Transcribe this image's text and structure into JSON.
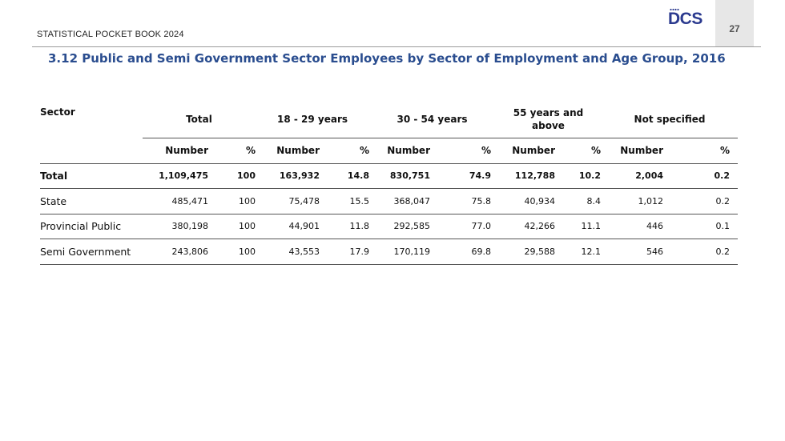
{
  "header": {
    "book_title": "STATISTICAL POCKET BOOK 2024",
    "logo_text": "DCS",
    "page_number": "27"
  },
  "section_title": "3.12 Public and Semi Government Sector Employees by Sector of Employment and Age Group, 2016",
  "table": {
    "sector_header": "Sector",
    "groups": [
      "Total",
      "18 - 29 years",
      "30 - 54 years",
      "55 years and above",
      "Not specified"
    ],
    "sub_headers": {
      "number": "Number",
      "percent": "%"
    },
    "rows": [
      {
        "sector": "Total",
        "values": [
          "1,109,475",
          "100",
          "163,932",
          "14.8",
          "830,751",
          "74.9",
          "112,788",
          "10.2",
          "2,004",
          "0.2"
        ]
      },
      {
        "sector": "State",
        "values": [
          "485,471",
          "100",
          "75,478",
          "15.5",
          "368,047",
          "75.8",
          "40,934",
          "8.4",
          "1,012",
          "0.2"
        ]
      },
      {
        "sector": "Provincial Public",
        "values": [
          "380,198",
          "100",
          "44,901",
          "11.8",
          "292,585",
          "77.0",
          "42,266",
          "11.1",
          "446",
          "0.1"
        ]
      },
      {
        "sector": "Semi Government",
        "values": [
          "243,806",
          "100",
          "43,553",
          "17.9",
          "170,119",
          "69.8",
          "29,588",
          "12.1",
          "546",
          "0.2"
        ]
      }
    ]
  }
}
